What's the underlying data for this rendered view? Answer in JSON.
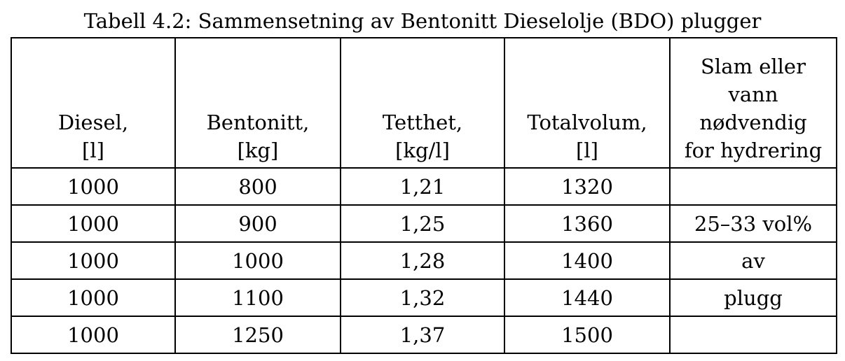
{
  "caption": "Tabell 4.2: Sammensetning av Bentonitt Dieselolje (BDO) plugger",
  "table": {
    "headers": [
      {
        "line1": "Diesel,",
        "line2": "[l]"
      },
      {
        "line1": "Bentonitt,",
        "line2": "[kg]"
      },
      {
        "line1": "Tetthet,",
        "line2": "[kg/l]"
      },
      {
        "line1": "Totalvolum,",
        "line2": "[l]"
      },
      {
        "line1": "Slam eller",
        "line2": "vann",
        "line3": "nødvendig",
        "line4": "for hydrering"
      }
    ],
    "rows": [
      [
        "1000",
        "800",
        "1,21",
        "1320",
        ""
      ],
      [
        "1000",
        "900",
        "1,25",
        "1360",
        "25–33 vol%"
      ],
      [
        "1000",
        "1000",
        "1,28",
        "1400",
        "av"
      ],
      [
        "1000",
        "1100",
        "1,32",
        "1440",
        "plugg"
      ],
      [
        "1000",
        "1250",
        "1,37",
        "1500",
        ""
      ]
    ]
  }
}
